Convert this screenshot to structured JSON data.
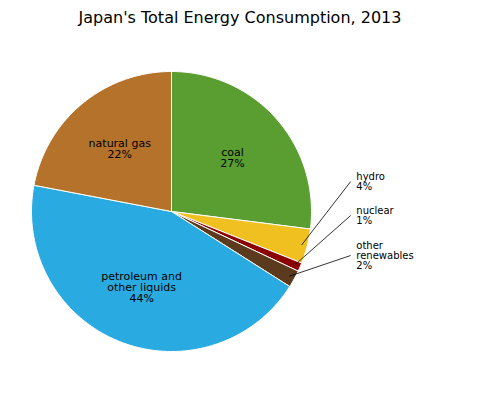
{
  "chart_data": {
    "type": "pie",
    "title": "Japan's Total Energy Consumption, 2013",
    "values": [
      27,
      4,
      1,
      2,
      44,
      22
    ],
    "colors": [
      "#5a9e32",
      "#f0c020",
      "#8b0000",
      "#5c3a1e",
      "#29abe2",
      "#b5722a"
    ],
    "value_labels": [
      "coal\n27%",
      "hydro\n4%",
      "nuclear\n1%",
      "other\nrenewables\n2%",
      "petroleum and\nother liquids\n44%",
      "natural gas\n22%"
    ],
    "data_labels": true
  }
}
